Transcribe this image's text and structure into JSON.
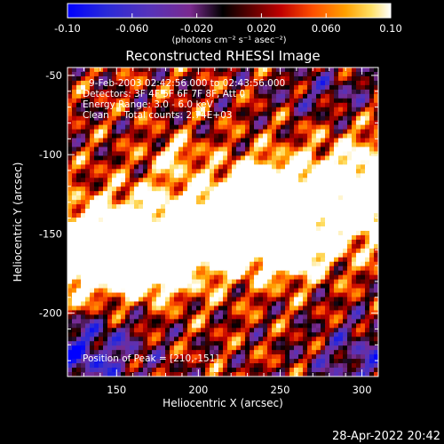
{
  "colorbar": {
    "ticks": [
      "-0.10",
      "-0.060",
      "-0.020",
      "0.020",
      "0.060",
      "0.10"
    ],
    "unit_label": "(photons cm⁻² s⁻¹ asec⁻²)",
    "range": [
      -0.1,
      0.1
    ]
  },
  "chart_data": {
    "type": "heatmap",
    "title": "Reconstructed RHESSI Image",
    "xlabel": "Heliocentric X (arcsec)",
    "ylabel": "Heliocentric Y (arcsec)",
    "xlim": [
      120,
      310
    ],
    "ylim": [
      -240,
      -45
    ],
    "xticks": [
      150,
      200,
      250,
      300
    ],
    "yticks": [
      -50,
      -100,
      -150,
      -200
    ],
    "peak": {
      "x": 210,
      "y": -151
    },
    "annotations": [
      "9-Feb-2003 02:42:56.000 to 02:43:56.000",
      "Detectors: 3F 4F 5F 6F 7F 8F, Att 0",
      "Energy Range: 3.0 - 6.0 keV",
      "Clean     Total counts: 2.74E+03"
    ],
    "peak_label": "Position of Peak = [210,-151]"
  },
  "footer": {
    "date": "28-Apr-2022 20:42"
  },
  "colors": {
    "background": "#000000",
    "foreground": "#ffffff"
  }
}
